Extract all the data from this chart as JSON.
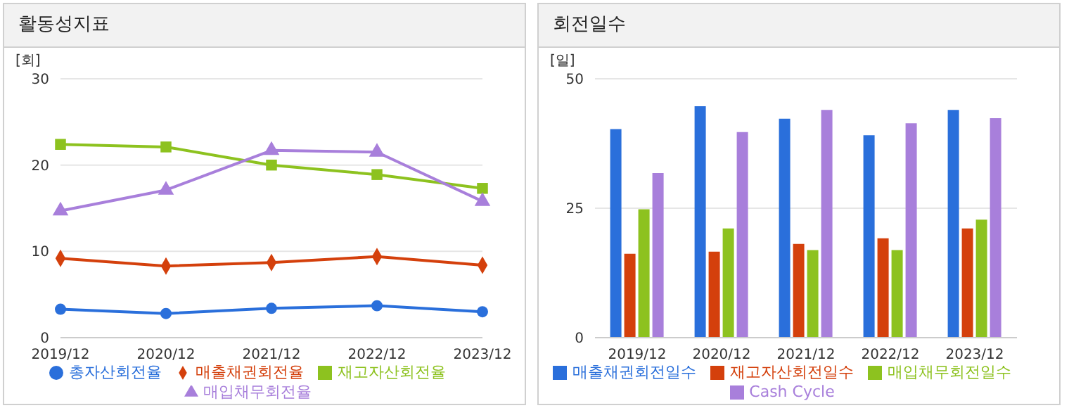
{
  "chart_data": [
    {
      "type": "line",
      "title": "활동성지표",
      "ylabel": "[회]",
      "categories": [
        "2019/12",
        "2020/12",
        "2021/12",
        "2022/12",
        "2023/12"
      ],
      "ylim": [
        0,
        30
      ],
      "yticks": [
        0,
        10,
        20,
        30
      ],
      "grid": "y",
      "legend": "bottom",
      "series": [
        {
          "name": "총자산회전율",
          "color": "#2a6fdb",
          "marker": "circle",
          "values": [
            3.3,
            2.8,
            3.4,
            3.7,
            3.0
          ]
        },
        {
          "name": "매출채권회전율",
          "color": "#d4400c",
          "marker": "diamond",
          "values": [
            9.2,
            8.3,
            8.7,
            9.4,
            8.4
          ]
        },
        {
          "name": "재고자산회전율",
          "color": "#8dc21f",
          "marker": "square",
          "values": [
            22.4,
            22.1,
            20.0,
            18.9,
            17.3
          ]
        },
        {
          "name": "매입채무회전율",
          "color": "#a87fdb",
          "marker": "triangle",
          "values": [
            14.7,
            17.1,
            21.7,
            21.5,
            15.8
          ]
        }
      ]
    },
    {
      "type": "bar",
      "title": "회전일수",
      "ylabel": "[일]",
      "categories": [
        "2019/12",
        "2020/12",
        "2021/12",
        "2022/12",
        "2023/12"
      ],
      "ylim": [
        0,
        50
      ],
      "yticks": [
        0,
        25,
        50
      ],
      "grid": "y",
      "legend": "bottom",
      "series": [
        {
          "name": "매출채권회전일수",
          "color": "#2a6fdb",
          "values": [
            40.3,
            44.7,
            42.3,
            39.1,
            44.0
          ]
        },
        {
          "name": "재고자산회전일수",
          "color": "#d4400c",
          "values": [
            16.2,
            16.6,
            18.1,
            19.2,
            21.1
          ]
        },
        {
          "name": "매입채무회전일수",
          "color": "#8dc21f",
          "values": [
            24.8,
            21.1,
            16.9,
            16.9,
            22.8
          ]
        },
        {
          "name": "Cash Cycle",
          "color": "#a87fdb",
          "values": [
            31.8,
            39.7,
            44.0,
            41.4,
            42.4
          ]
        }
      ]
    }
  ]
}
